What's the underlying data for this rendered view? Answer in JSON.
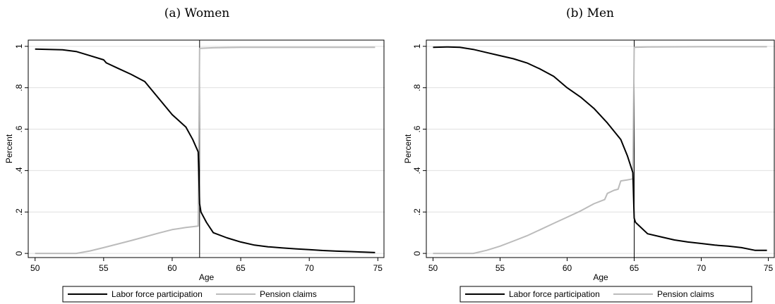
{
  "chart_data": [
    {
      "type": "line",
      "title": "(a) Women",
      "xlabel": "Age",
      "ylabel": "Percent",
      "xlim": [
        49.5,
        75.5
      ],
      "ylim": [
        -0.02,
        1.03
      ],
      "xticks": [
        50,
        55,
        60,
        65,
        70,
        75
      ],
      "xtick_labels": [
        "50",
        "55",
        "60",
        "65",
        "70",
        "75"
      ],
      "yticks": [
        0,
        0.2,
        0.4,
        0.6,
        0.8,
        1
      ],
      "ytick_labels": [
        "0",
        ".2",
        ".4",
        ".6",
        ".8",
        "1"
      ],
      "grid": true,
      "vline": 62,
      "legend_position": "bottom",
      "series": [
        {
          "name": "Labor force participation",
          "color": "#000000",
          "points": [
            [
              50,
              0.987
            ],
            [
              51,
              0.985
            ],
            [
              52,
              0.983
            ],
            [
              53,
              0.975
            ],
            [
              54,
              0.955
            ],
            [
              55,
              0.935
            ],
            [
              55.2,
              0.92
            ],
            [
              56,
              0.895
            ],
            [
              57,
              0.865
            ],
            [
              58,
              0.83
            ],
            [
              59,
              0.75
            ],
            [
              60,
              0.67
            ],
            [
              60.5,
              0.64
            ],
            [
              61,
              0.61
            ],
            [
              61.5,
              0.55
            ],
            [
              61.9,
              0.49
            ],
            [
              62,
              0.24
            ],
            [
              62.1,
              0.2
            ],
            [
              62.5,
              0.15
            ],
            [
              63,
              0.1
            ],
            [
              64,
              0.075
            ],
            [
              65,
              0.055
            ],
            [
              66,
              0.04
            ],
            [
              67,
              0.032
            ],
            [
              68,
              0.027
            ],
            [
              69,
              0.022
            ],
            [
              70,
              0.018
            ],
            [
              71,
              0.014
            ],
            [
              72,
              0.011
            ],
            [
              73,
              0.009
            ],
            [
              74,
              0.006
            ],
            [
              74.8,
              0.004
            ]
          ]
        },
        {
          "name": "Pension claims",
          "color": "#bbbbbb",
          "points": [
            [
              50,
              0
            ],
            [
              53,
              0
            ],
            [
              54,
              0.012
            ],
            [
              55,
              0.028
            ],
            [
              56,
              0.045
            ],
            [
              57,
              0.062
            ],
            [
              58,
              0.08
            ],
            [
              59,
              0.098
            ],
            [
              60,
              0.115
            ],
            [
              61,
              0.125
            ],
            [
              61.9,
              0.132
            ],
            [
              62,
              0.99
            ],
            [
              63,
              0.993
            ],
            [
              65,
              0.995
            ],
            [
              70,
              0.995
            ],
            [
              74.8,
              0.995
            ]
          ]
        }
      ]
    },
    {
      "type": "line",
      "title": "(b) Men",
      "xlabel": "Age",
      "ylabel": "Percent",
      "xlim": [
        49.5,
        75.5
      ],
      "ylim": [
        -0.02,
        1.03
      ],
      "xticks": [
        50,
        55,
        60,
        65,
        70,
        75
      ],
      "xtick_labels": [
        "50",
        "55",
        "60",
        "65",
        "70",
        "75"
      ],
      "yticks": [
        0,
        0.2,
        0.4,
        0.6,
        0.8,
        1
      ],
      "ytick_labels": [
        "0",
        ".2",
        ".4",
        ".6",
        ".8",
        "1"
      ],
      "grid": true,
      "vline": 65,
      "legend_position": "bottom",
      "series": [
        {
          "name": "Labor force participation",
          "color": "#000000",
          "points": [
            [
              50,
              0.995
            ],
            [
              51,
              0.997
            ],
            [
              52,
              0.995
            ],
            [
              53,
              0.985
            ],
            [
              54,
              0.97
            ],
            [
              55,
              0.955
            ],
            [
              56,
              0.94
            ],
            [
              57,
              0.92
            ],
            [
              58,
              0.89
            ],
            [
              59,
              0.855
            ],
            [
              60,
              0.8
            ],
            [
              61,
              0.755
            ],
            [
              62,
              0.7
            ],
            [
              63,
              0.63
            ],
            [
              64,
              0.55
            ],
            [
              64.5,
              0.47
            ],
            [
              64.9,
              0.39
            ],
            [
              65,
              0.17
            ],
            [
              65.1,
              0.15
            ],
            [
              66,
              0.095
            ],
            [
              67,
              0.08
            ],
            [
              68,
              0.065
            ],
            [
              69,
              0.055
            ],
            [
              70,
              0.048
            ],
            [
              71,
              0.04
            ],
            [
              72,
              0.035
            ],
            [
              73,
              0.028
            ],
            [
              74,
              0.015
            ],
            [
              74.9,
              0.015
            ]
          ]
        },
        {
          "name": "Pension claims",
          "color": "#bbbbbb",
          "points": [
            [
              50,
              0
            ],
            [
              53,
              0
            ],
            [
              54,
              0.015
            ],
            [
              55,
              0.035
            ],
            [
              56,
              0.06
            ],
            [
              57,
              0.085
            ],
            [
              58,
              0.115
            ],
            [
              59,
              0.145
            ],
            [
              60,
              0.175
            ],
            [
              61,
              0.205
            ],
            [
              62,
              0.24
            ],
            [
              62.8,
              0.26
            ],
            [
              63,
              0.29
            ],
            [
              63.5,
              0.305
            ],
            [
              63.8,
              0.31
            ],
            [
              64,
              0.35
            ],
            [
              64.5,
              0.355
            ],
            [
              64.9,
              0.36
            ],
            [
              65,
              0.995
            ],
            [
              66,
              0.997
            ],
            [
              70,
              0.998
            ],
            [
              74.9,
              0.998
            ]
          ]
        }
      ]
    }
  ]
}
